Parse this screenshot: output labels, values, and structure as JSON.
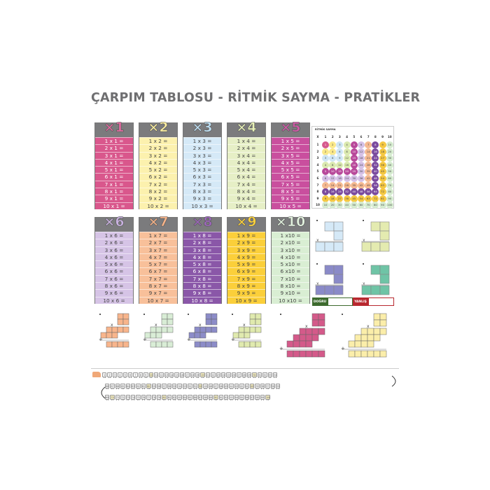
{
  "title": "ÇARPIM TABLOSU - RİTMİK SAYMA - PRATİKLER",
  "tables": [
    {
      "label": "×1",
      "color": "#d9578c",
      "title_color": "#e26aa0",
      "text": "#fff"
    },
    {
      "label": "×2",
      "color": "#fcf1ae",
      "title_color": "#fbeea0",
      "text": "#444"
    },
    {
      "label": "×3",
      "color": "#d5e9f7",
      "title_color": "#bfe0f4",
      "text": "#444"
    },
    {
      "label": "×4",
      "color": "#e6efc6",
      "title_color": "#e8f2b8",
      "text": "#444"
    },
    {
      "label": "×5",
      "color": "#c94f9e",
      "title_color": "#d15aa8",
      "text": "#fff"
    },
    {
      "label": "×6",
      "color": "#d6c4e6",
      "title_color": "#c9b2e0",
      "text": "#444"
    },
    {
      "label": "×7",
      "color": "#f8c09a",
      "title_color": "#f7b48a",
      "text": "#444"
    },
    {
      "label": "×8",
      "color": "#8a57a8",
      "title_color": "#9b67b8",
      "text": "#fff"
    },
    {
      "label": "×9",
      "color": "#fbcf3a",
      "title_color": "#fbd13d",
      "text": "#444"
    },
    {
      "label": "×10",
      "color": "#d9eed3",
      "title_color": "#e3f2df",
      "text": "#444"
    }
  ],
  "table_rows": [
    [
      "1 x 1 =",
      "2 x 1 =",
      "3 x 1 =",
      "4 x 1 =",
      "5 x 1 =",
      "6 x 1 =",
      "7 x 1 =",
      "8 x 1 =",
      "9 x 1 =",
      "10 x 1 ="
    ],
    [
      "1 x 2 =",
      "2 x 2 =",
      "3 x 2 =",
      "4 x 2 =",
      "5 x 2 =",
      "6 x 2 =",
      "7 x 2 =",
      "8 x 2 =",
      "9 x 2 =",
      "10 x 2 ="
    ],
    [
      "1 x 3 =",
      "2 x 3 =",
      "3 x 3 =",
      "4 x 3 =",
      "5 x 3 =",
      "6 x 3 =",
      "7 x 3 =",
      "8 x 3 =",
      "9 x 3 =",
      "10 x 3 ="
    ],
    [
      "1 x 4 =",
      "2 x 4 =",
      "3 x 4 =",
      "4 x 4 =",
      "5 x 4 =",
      "6 x 4 =",
      "7 x 4 =",
      "8 x 4 =",
      "9 x 4 =",
      "10 x 4 ="
    ],
    [
      "1 x 5 =",
      "2 x 5 =",
      "3 x 5 =",
      "4 x 5 =",
      "5 x 5 =",
      "6 x 5 =",
      "7 x 5 =",
      "8 x 5 =",
      "9 x 5 =",
      "10 x 5 ="
    ],
    [
      "1 x 6 =",
      "2 x 6 =",
      "3 x 6 =",
      "4 x 6 =",
      "5 x 6 =",
      "6 x 6 =",
      "7 x 6 =",
      "8 x 6 =",
      "9 x 6 =",
      "10 x 6 ="
    ],
    [
      "1 x 7 =",
      "2 x 7 =",
      "3 x 7 =",
      "4 x 7 =",
      "5 x 7 =",
      "6 x 7 =",
      "7 x 7 =",
      "8 x 7 =",
      "9 x 7 =",
      "10 x 7 ="
    ],
    [
      "1 x 8 =",
      "2 x 8 =",
      "3 x 8 =",
      "4 x 8 =",
      "5 x 8 =",
      "6 x 8 =",
      "7 x 8 =",
      "8 x 8 =",
      "9 x 8 =",
      "10 x 8 ="
    ],
    [
      "1 x 9 =",
      "2 x 9 =",
      "3 x 9 =",
      "4 x 9 =",
      "5 x 9 =",
      "6 x 9 =",
      "7 x 9 =",
      "8 x 9 =",
      "9 x 9 =",
      "10 x 9 ="
    ],
    [
      "1 x10 =",
      "2 x10 =",
      "3 x10 =",
      "4 x10 =",
      "5 x10 =",
      "6 x10 =",
      "7 x10 =",
      "8 x10 =",
      "9 x10 =",
      "10 x10 ="
    ]
  ],
  "ritmik": {
    "label": "RİTMİK SAYMA",
    "corner": "X",
    "palette": [
      "#d65a8e",
      "#fbe98a",
      "#cfe6f5",
      "#dbe9b0",
      "#b8489a",
      "#d4c0e6",
      "#f5b990",
      "#7a4a9e",
      "#f5c842",
      "#d6ecd0"
    ],
    "headers": [
      1,
      2,
      3,
      4,
      5,
      6,
      7,
      8,
      9,
      10
    ],
    "rows": [
      [
        1,
        2,
        3,
        4,
        5,
        6,
        7,
        8,
        9,
        10
      ],
      [
        2,
        4,
        6,
        8,
        10,
        12,
        14,
        16,
        18,
        20
      ],
      [
        3,
        6,
        9,
        12,
        15,
        18,
        21,
        24,
        27,
        30
      ],
      [
        4,
        8,
        12,
        16,
        20,
        24,
        28,
        32,
        36,
        40
      ],
      [
        5,
        10,
        15,
        20,
        25,
        30,
        35,
        40,
        45,
        50
      ],
      [
        6,
        12,
        18,
        24,
        30,
        36,
        42,
        48,
        54,
        60
      ],
      [
        7,
        14,
        21,
        28,
        35,
        42,
        49,
        56,
        63,
        70
      ],
      [
        8,
        16,
        24,
        32,
        40,
        48,
        56,
        64,
        72,
        80
      ],
      [
        9,
        18,
        27,
        36,
        45,
        54,
        63,
        72,
        81,
        90
      ],
      [
        10,
        20,
        30,
        40,
        50,
        60,
        70,
        80,
        90,
        100
      ]
    ]
  },
  "practice_shapes": {
    "colors": [
      "#d5e9f7",
      "#e4ebb0",
      "#8a8ac8",
      "#6fc4a6"
    ],
    "mark": "x"
  },
  "answer_box": {
    "correct": "DOĞRU",
    "wrong": "YANLIŞ"
  },
  "diagrams": {
    "colors": [
      "#f8b58c",
      "#d9edd6",
      "#8c8cc8",
      "#e0eaae",
      "#d45a8a",
      "#fbeeaa"
    ],
    "mult": "x",
    "plus": "+"
  },
  "train": {
    "row1": [
      1,
      2,
      3,
      4,
      5,
      6,
      7,
      8,
      9,
      10,
      11,
      12,
      13,
      14,
      15,
      16,
      17,
      18,
      19,
      20,
      21,
      22,
      23,
      24,
      25,
      26,
      27,
      28,
      29,
      30,
      31,
      32,
      33,
      34
    ],
    "row2": [
      68,
      67,
      66,
      65,
      64,
      63,
      62,
      61,
      60,
      59,
      58,
      57,
      56,
      55,
      54,
      53,
      52,
      51,
      50,
      49,
      48,
      47,
      46,
      45,
      44,
      43,
      42,
      41,
      40,
      39,
      38,
      37,
      36,
      35
    ],
    "row3": [
      69,
      70,
      71,
      72,
      73,
      74,
      75,
      76,
      77,
      78,
      79,
      80,
      81,
      82,
      83,
      84,
      85,
      86,
      87,
      88,
      89,
      90,
      91,
      92,
      93,
      94,
      95,
      96,
      97,
      98,
      99,
      100
    ]
  }
}
